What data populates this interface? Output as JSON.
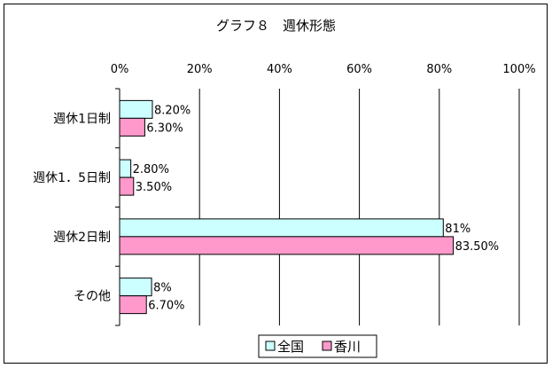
{
  "chart_data": {
    "type": "bar",
    "orientation": "horizontal",
    "title": "グラフ８　週休形態",
    "categories": [
      "週休1日制",
      "週休1．5日制",
      "週休2日制",
      "その他"
    ],
    "x_tick_labels": [
      "0%",
      "20%",
      "40%",
      "60%",
      "80%",
      "100%"
    ],
    "xlim": [
      0,
      100
    ],
    "grid": true,
    "legend_position": "bottom",
    "series": [
      {
        "name": "全国",
        "color": "#ccffff",
        "values": [
          8.2,
          2.8,
          81,
          8
        ],
        "labels": [
          "8.20%",
          "2.80%",
          "81%",
          "8%"
        ]
      },
      {
        "name": "香川",
        "color": "#ff99cc",
        "values": [
          6.3,
          3.5,
          83.5,
          6.7
        ],
        "labels": [
          "6.30%",
          "3.50%",
          "83.50%",
          "6.70%"
        ]
      }
    ]
  }
}
